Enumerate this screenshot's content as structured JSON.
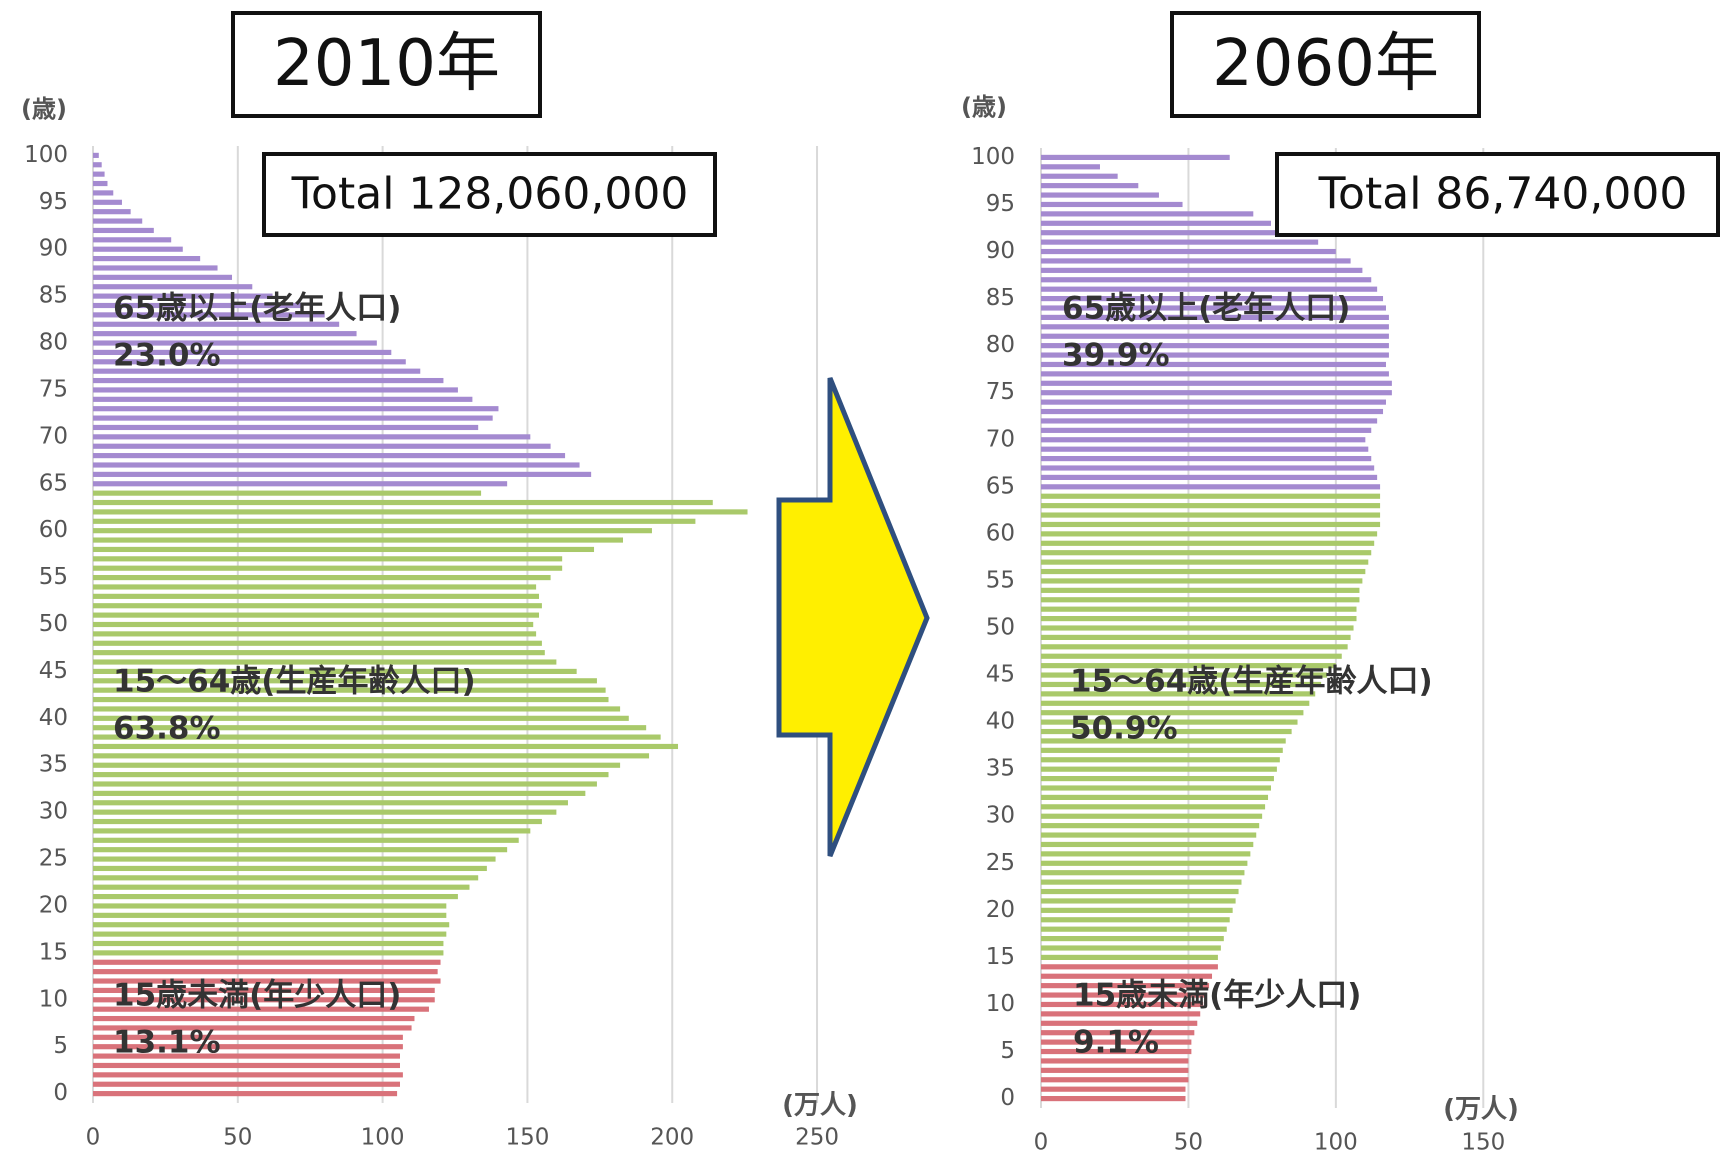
{
  "chart_data": [
    {
      "type": "bar",
      "orientation": "horizontal",
      "title": "2010年",
      "total": "Total 128,060,000",
      "ylabel": "(歳)",
      "xlabel": "(万人)",
      "xlim": [
        0,
        260
      ],
      "xticks": [
        0,
        50,
        100,
        150,
        200,
        250
      ],
      "ylim": [
        -1,
        101
      ],
      "yticks": [
        0,
        5,
        10,
        15,
        20,
        25,
        30,
        35,
        40,
        45,
        50,
        55,
        60,
        65,
        70,
        75,
        80,
        85,
        90,
        95,
        100
      ],
      "grid": true,
      "series": [
        {
          "name": "15歳未満(年少人口)",
          "share": "13.1%",
          "color": "#d9727a",
          "y": [
            0,
            1,
            2,
            3,
            4,
            5,
            6,
            7,
            8,
            9,
            10,
            11,
            12,
            13,
            14
          ],
          "values": [
            105,
            106,
            107,
            106,
            106,
            107,
            107,
            110,
            111,
            116,
            118,
            118,
            120,
            119,
            120
          ]
        },
        {
          "name": "15〜64歳(生産年齢人口)",
          "share": "63.8%",
          "color": "#a9c96a",
          "y": [
            15,
            16,
            17,
            18,
            19,
            20,
            21,
            22,
            23,
            24,
            25,
            26,
            27,
            28,
            29,
            30,
            31,
            32,
            33,
            34,
            35,
            36,
            37,
            38,
            39,
            40,
            41,
            42,
            43,
            44,
            45,
            46,
            47,
            48,
            49,
            50,
            51,
            52,
            53,
            54,
            55,
            56,
            57,
            58,
            59,
            60,
            61,
            62,
            63,
            64
          ],
          "values": [
            121,
            121,
            122,
            123,
            122,
            122,
            126,
            130,
            133,
            136,
            139,
            143,
            147,
            151,
            155,
            160,
            164,
            170,
            174,
            178,
            182,
            192,
            202,
            196,
            191,
            185,
            182,
            178,
            177,
            174,
            167,
            160,
            156,
            155,
            153,
            152,
            154,
            155,
            154,
            153,
            158,
            162,
            162,
            173,
            183,
            193,
            208,
            226,
            214,
            134
          ]
        },
        {
          "name": "65歳以上(老年人口)",
          "share": "23.0%",
          "color": "#a48ad0",
          "y": [
            65,
            66,
            67,
            68,
            69,
            70,
            71,
            72,
            73,
            74,
            75,
            76,
            77,
            78,
            79,
            80,
            81,
            82,
            83,
            84,
            85,
            86,
            87,
            88,
            89,
            90,
            91,
            92,
            93,
            94,
            95,
            96,
            97,
            98,
            99,
            100
          ],
          "values": [
            143,
            172,
            168,
            163,
            158,
            151,
            133,
            138,
            140,
            131,
            126,
            121,
            113,
            108,
            103,
            98,
            91,
            85,
            80,
            72,
            62,
            55,
            48,
            43,
            37,
            31,
            27,
            21,
            17,
            13,
            10,
            7,
            5,
            4,
            3,
            2
          ]
        }
      ]
    },
    {
      "type": "bar",
      "orientation": "horizontal",
      "title": "2060年",
      "total": "Total 86,740,000",
      "ylabel": "(歳)",
      "xlabel": "(万人)",
      "xlim": [
        0,
        175
      ],
      "xticks": [
        0,
        50,
        100,
        150
      ],
      "ylim": [
        -1,
        101
      ],
      "yticks": [
        0,
        5,
        10,
        15,
        20,
        25,
        30,
        35,
        40,
        45,
        50,
        55,
        60,
        65,
        70,
        75,
        80,
        85,
        90,
        95,
        100
      ],
      "grid": true,
      "series": [
        {
          "name": "15歳未満(年少人口)",
          "share": "9.1%",
          "color": "#d9727a",
          "y": [
            0,
            1,
            2,
            3,
            4,
            5,
            6,
            7,
            8,
            9,
            10,
            11,
            12,
            13,
            14
          ],
          "values": [
            49,
            49,
            50,
            50,
            50,
            51,
            51,
            52,
            53,
            54,
            55,
            56,
            57,
            58,
            60
          ]
        },
        {
          "name": "15〜64歳(生産年齢人口)",
          "share": "50.9%",
          "color": "#a9c96a",
          "y": [
            15,
            16,
            17,
            18,
            19,
            20,
            21,
            22,
            23,
            24,
            25,
            26,
            27,
            28,
            29,
            30,
            31,
            32,
            33,
            34,
            35,
            36,
            37,
            38,
            39,
            40,
            41,
            42,
            43,
            44,
            45,
            46,
            47,
            48,
            49,
            50,
            51,
            52,
            53,
            54,
            55,
            56,
            57,
            58,
            59,
            60,
            61,
            62,
            63,
            64
          ],
          "values": [
            60,
            61,
            62,
            63,
            64,
            65,
            66,
            67,
            68,
            69,
            70,
            71,
            72,
            73,
            74,
            75,
            76,
            77,
            78,
            79,
            80,
            81,
            82,
            83,
            85,
            87,
            89,
            91,
            93,
            95,
            97,
            100,
            102,
            104,
            105,
            106,
            107,
            107,
            108,
            108,
            109,
            110,
            111,
            112,
            113,
            114,
            115,
            115,
            115,
            115
          ]
        },
        {
          "name": "65歳以上(老年人口)",
          "share": "39.9%",
          "color": "#a48ad0",
          "y": [
            65,
            66,
            67,
            68,
            69,
            70,
            71,
            72,
            73,
            74,
            75,
            76,
            77,
            78,
            79,
            80,
            81,
            82,
            83,
            84,
            85,
            86,
            87,
            88,
            89,
            90,
            91,
            92,
            93,
            94,
            95,
            96,
            97,
            98,
            99,
            100
          ],
          "values": [
            115,
            114,
            113,
            112,
            111,
            110,
            112,
            114,
            116,
            117,
            119,
            119,
            118,
            117,
            118,
            118,
            118,
            118,
            118,
            117,
            116,
            114,
            112,
            109,
            105,
            100,
            94,
            86,
            78,
            72,
            48,
            40,
            33,
            26,
            20,
            64
          ]
        }
      ]
    }
  ]
}
